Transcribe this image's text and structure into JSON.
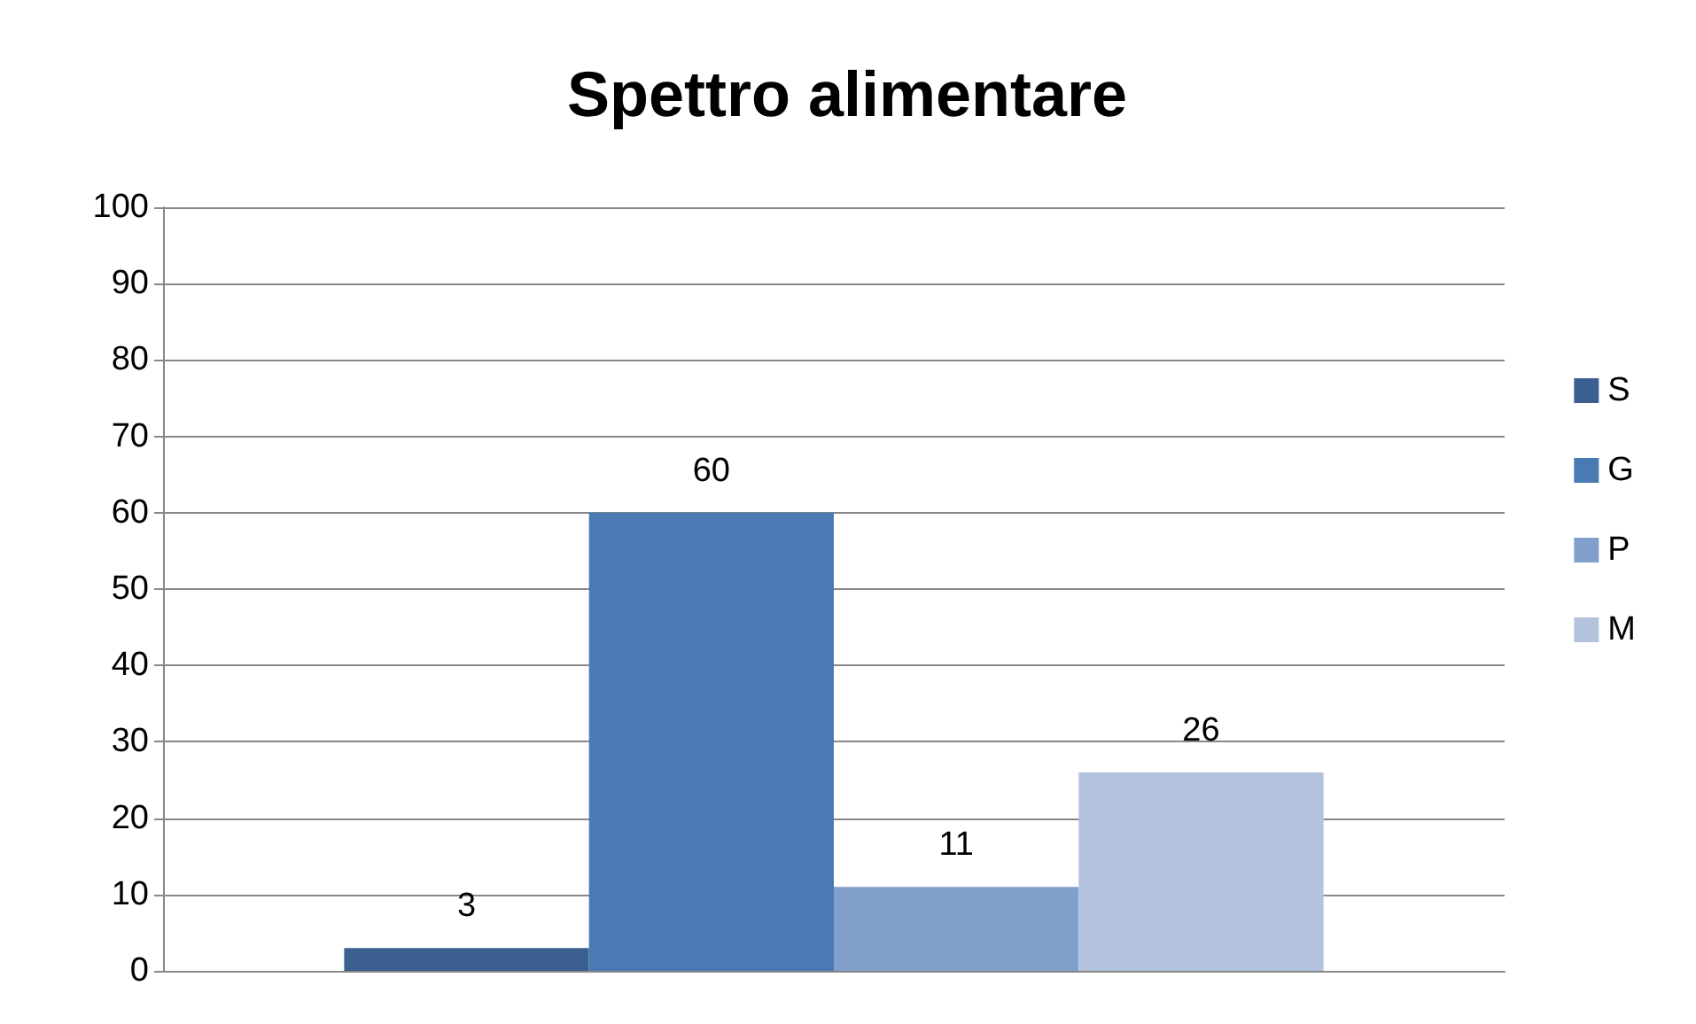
{
  "chart_data": {
    "type": "bar",
    "title": "Spettro alimentare",
    "categories": [
      null
    ],
    "series": [
      {
        "name": "S",
        "color": "#3b5f8e",
        "values": [
          3
        ]
      },
      {
        "name": "G",
        "color": "#4a7ab3",
        "values": [
          60
        ]
      },
      {
        "name": "P",
        "color": "#809fcb",
        "values": [
          11
        ]
      },
      {
        "name": "M",
        "color": "#b4c3dd",
        "values": [
          26
        ]
      }
    ],
    "ylim": [
      0,
      100
    ],
    "yticks": [
      0,
      10,
      20,
      30,
      40,
      50,
      60,
      70,
      80,
      90,
      100
    ],
    "grid": "y",
    "legend": "right",
    "data_labels": true
  }
}
